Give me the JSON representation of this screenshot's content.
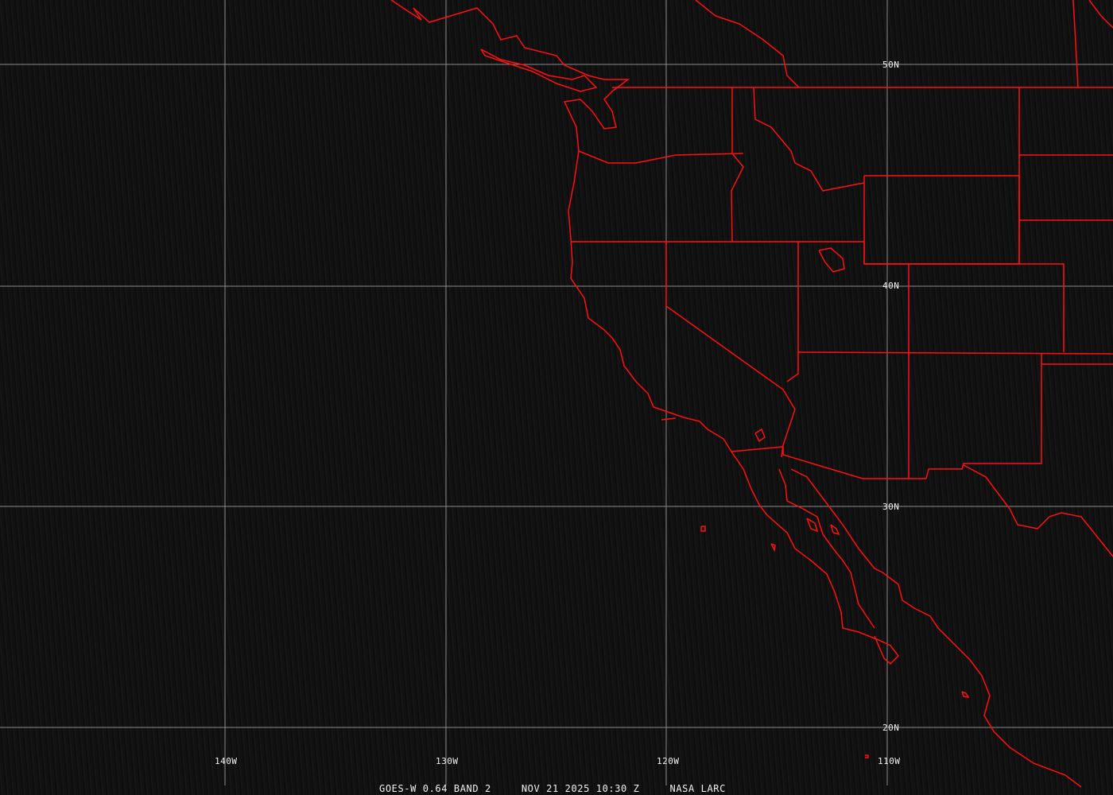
{
  "map": {
    "latitude_labels": [
      "50N",
      "40N",
      "30N",
      "20N"
    ],
    "longitude_labels": [
      "140W",
      "130W",
      "120W",
      "110W"
    ],
    "caption": {
      "satellite": "GOES-W 0.64 BAND 2",
      "datetime": "NOV 21 2025 10:30 Z",
      "source": "NASA LARC"
    },
    "colors": {
      "boundaries": "#ff0000",
      "grid": "#9a9a9a",
      "background": "#101010"
    }
  }
}
